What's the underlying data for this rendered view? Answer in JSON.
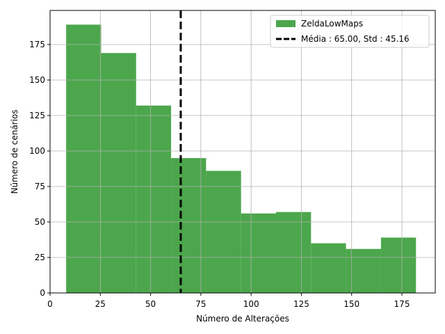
{
  "chart_data": {
    "type": "histogram",
    "xlabel": "Número de Alterações",
    "ylabel": "Número de cenários",
    "bins": [
      8,
      25.4,
      42.8,
      60.2,
      77.6,
      95,
      112.4,
      129.8,
      147.2,
      164.6,
      182
    ],
    "series": [
      {
        "name": "ZeldaLowMaps",
        "color": "#4ca64c",
        "values": [
          189,
          169,
          132,
          95,
          86,
          56,
          57,
          35,
          31,
          39
        ]
      }
    ],
    "vline": {
      "name": "Média : 65.00, Std : 45.16",
      "value": 65,
      "color": "#000000"
    },
    "xlim": [
      0,
      191.6
    ],
    "xticks": [
      0,
      25,
      50,
      75,
      100,
      125,
      150,
      175
    ],
    "ylim": [
      0,
      199
    ],
    "yticks": [
      0,
      25,
      50,
      75,
      100,
      125,
      150,
      175
    ],
    "grid": true,
    "legend": "upper right"
  }
}
